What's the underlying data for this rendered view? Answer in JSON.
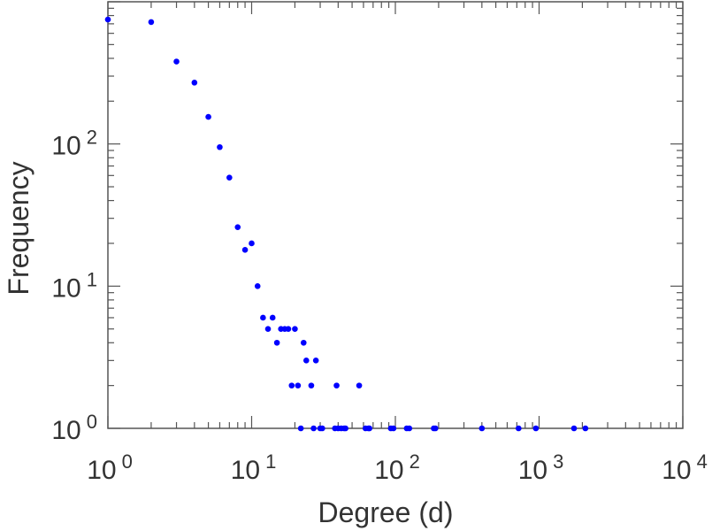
{
  "chart_data": {
    "type": "scatter",
    "xlabel": "Degree (d)",
    "ylabel": "Frequency",
    "xscale": "log",
    "yscale": "log",
    "xlim": [
      1,
      10000
    ],
    "ylim": [
      1,
      1000
    ],
    "grid": false,
    "marker_color": "#0000ff",
    "x_ticks": [
      {
        "base": "10",
        "exp": "0"
      },
      {
        "base": "10",
        "exp": "1"
      },
      {
        "base": "10",
        "exp": "2"
      },
      {
        "base": "10",
        "exp": "3"
      },
      {
        "base": "10",
        "exp": "4"
      }
    ],
    "y_ticks": [
      {
        "base": "10",
        "exp": "0"
      },
      {
        "base": "10",
        "exp": "1"
      },
      {
        "base": "10",
        "exp": "2"
      }
    ],
    "points": [
      [
        1,
        750
      ],
      [
        2,
        720
      ],
      [
        3,
        380
      ],
      [
        4,
        270
      ],
      [
        5,
        155
      ],
      [
        6,
        95
      ],
      [
        7,
        58
      ],
      [
        8,
        26
      ],
      [
        9,
        18
      ],
      [
        10,
        20
      ],
      [
        11,
        10
      ],
      [
        12,
        6
      ],
      [
        13,
        5
      ],
      [
        14,
        6
      ],
      [
        15,
        4
      ],
      [
        16,
        5
      ],
      [
        17,
        5
      ],
      [
        18,
        5
      ],
      [
        19,
        2
      ],
      [
        20,
        5
      ],
      [
        21,
        2
      ],
      [
        22,
        1
      ],
      [
        23,
        4
      ],
      [
        24,
        3
      ],
      [
        26,
        2
      ],
      [
        27,
        1
      ],
      [
        28,
        3
      ],
      [
        30,
        1
      ],
      [
        31,
        1
      ],
      [
        38,
        1
      ],
      [
        39,
        2
      ],
      [
        40,
        1
      ],
      [
        42,
        1
      ],
      [
        44,
        1
      ],
      [
        45,
        1
      ],
      [
        56,
        2
      ],
      [
        62,
        1
      ],
      [
        65,
        1
      ],
      [
        66,
        1
      ],
      [
        93,
        1
      ],
      [
        97,
        1
      ],
      [
        120,
        1
      ],
      [
        125,
        1
      ],
      [
        185,
        1
      ],
      [
        190,
        1
      ],
      [
        400,
        1
      ],
      [
        720,
        1
      ],
      [
        950,
        1
      ],
      [
        1750,
        1
      ],
      [
        2100,
        1
      ]
    ]
  }
}
